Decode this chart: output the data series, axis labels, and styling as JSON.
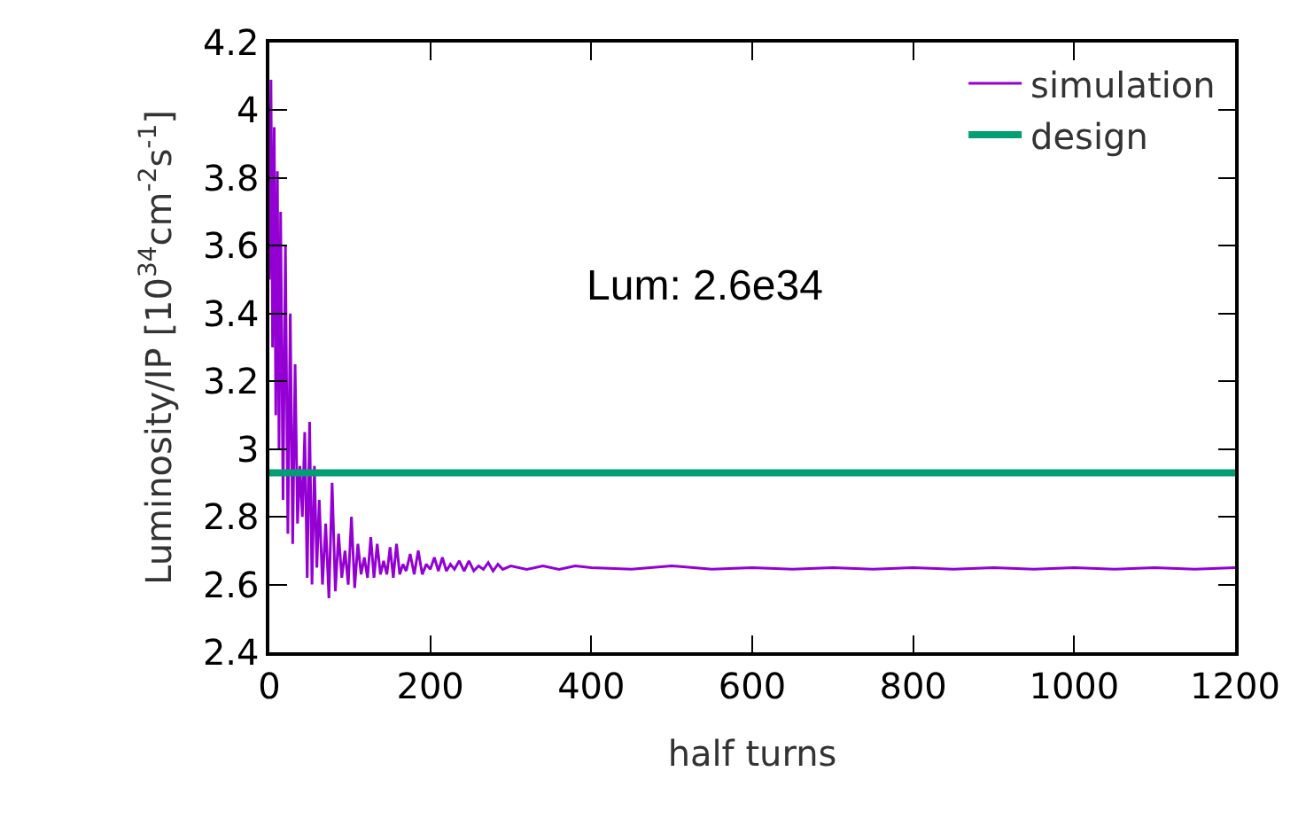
{
  "chart_data": {
    "type": "line",
    "xlabel": "half turns",
    "ylabel": "Luminosity/IP [10$^{34}$cm$^{-2}$s$^{-1}$]",
    "annotations": [
      "Lum: 2.6e34"
    ],
    "xlim": [
      0,
      1200
    ],
    "xticks": [
      0,
      200,
      400,
      600,
      800,
      1000,
      1200
    ],
    "ylim": [
      2.4,
      4.2
    ],
    "yticks": [
      2.4,
      2.6,
      2.8,
      3,
      3.2,
      3.4,
      3.6,
      3.8,
      4,
      4.2
    ],
    "grid": false,
    "legend": "top right",
    "line_style": "solid",
    "marker": "none",
    "series": [
      {
        "name": "simulation",
        "color": "#9400d3",
        "x": [
          0,
          2,
          4,
          6,
          8,
          10,
          12,
          14,
          17,
          20,
          23,
          26,
          29,
          32,
          35,
          38,
          41,
          44,
          47,
          50,
          53,
          56,
          59,
          62,
          66,
          70,
          74,
          78,
          82,
          86,
          90,
          94,
          98,
          102,
          106,
          110,
          114,
          118,
          122,
          126,
          130,
          134,
          138,
          142,
          146,
          150,
          154,
          158,
          162,
          166,
          170,
          175,
          180,
          185,
          190,
          195,
          200,
          205,
          210,
          215,
          220,
          225,
          230,
          236,
          242,
          248,
          254,
          260,
          266,
          272,
          278,
          284,
          290,
          300,
          320,
          340,
          360,
          380,
          400,
          450,
          500,
          550,
          600,
          650,
          700,
          750,
          800,
          850,
          900,
          950,
          1000,
          1050,
          1100,
          1150,
          1200
        ],
        "values": [
          3.5,
          4.09,
          3.3,
          3.95,
          3.1,
          3.82,
          3.0,
          3.7,
          2.85,
          3.6,
          2.75,
          3.4,
          2.72,
          3.25,
          2.78,
          2.95,
          2.8,
          3.05,
          2.62,
          3.08,
          2.6,
          2.95,
          2.65,
          2.85,
          2.6,
          2.78,
          2.56,
          2.9,
          2.58,
          2.75,
          2.62,
          2.7,
          2.6,
          2.8,
          2.59,
          2.72,
          2.63,
          2.68,
          2.62,
          2.74,
          2.62,
          2.72,
          2.63,
          2.67,
          2.63,
          2.71,
          2.62,
          2.72,
          2.63,
          2.66,
          2.64,
          2.69,
          2.63,
          2.7,
          2.63,
          2.66,
          2.645,
          2.68,
          2.64,
          2.68,
          2.64,
          2.66,
          2.645,
          2.67,
          2.64,
          2.67,
          2.64,
          2.655,
          2.645,
          2.665,
          2.64,
          2.66,
          2.645,
          2.655,
          2.645,
          2.655,
          2.645,
          2.655,
          2.65,
          2.645,
          2.655,
          2.645,
          2.65,
          2.645,
          2.65,
          2.645,
          2.65,
          2.645,
          2.65,
          2.645,
          2.65,
          2.645,
          2.65,
          2.645,
          2.65
        ]
      },
      {
        "name": "design",
        "color": "#009e73",
        "x": [
          0,
          1200
        ],
        "values": [
          2.93,
          2.93
        ]
      }
    ]
  }
}
